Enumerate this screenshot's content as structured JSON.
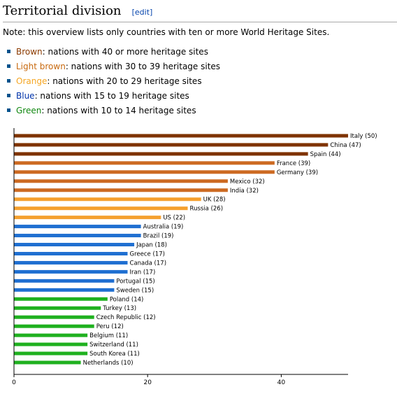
{
  "section": {
    "title": "Territorial division",
    "edit_label": "edit",
    "edit_open": "[",
    "edit_close": "]"
  },
  "note": "Note: this overview lists only countries with ten or more World Heritage Sites.",
  "legend": [
    {
      "term": "Brown",
      "rest": ": nations with 40 or more heritage sites",
      "color": "#8b3a00"
    },
    {
      "term": "Light brown",
      "rest": ": nations with 30 to 39 heritage sites",
      "color": "#c8690e"
    },
    {
      "term": "Orange",
      "rest": ": nations with 20 to 29 heritage sites",
      "color": "#f5a623"
    },
    {
      "term": "Blue",
      "rest": ": nations with 15 to 19 heritage sites",
      "color": "#0033aa"
    },
    {
      "term": "Green",
      "rest": ": nations with 10 to 14 heritage sites",
      "color": "#118811"
    }
  ],
  "chart_data": {
    "type": "bar",
    "orientation": "horizontal",
    "xlim": [
      0,
      50
    ],
    "xticks": [
      "0",
      "20",
      "40"
    ],
    "grid": false,
    "colors": {
      "brown": "#7f3300",
      "light_brown": "#cc6a22",
      "orange": "#f5a02e",
      "blue": "#1f6fd1",
      "green": "#1fb11f"
    },
    "bars": [
      {
        "label": "Italy (50)",
        "value": 50,
        "group": "brown"
      },
      {
        "label": "China (47)",
        "value": 47,
        "group": "brown"
      },
      {
        "label": "Spain (44)",
        "value": 44,
        "group": "brown"
      },
      {
        "label": "France (39)",
        "value": 39,
        "group": "light_brown"
      },
      {
        "label": "Germany (39)",
        "value": 39,
        "group": "light_brown"
      },
      {
        "label": "Mexico (32)",
        "value": 32,
        "group": "light_brown"
      },
      {
        "label": "India (32)",
        "value": 32,
        "group": "light_brown"
      },
      {
        "label": "UK (28)",
        "value": 28,
        "group": "orange"
      },
      {
        "label": "Russia (26)",
        "value": 26,
        "group": "orange"
      },
      {
        "label": "US (22)",
        "value": 22,
        "group": "orange"
      },
      {
        "label": "Australia (19)",
        "value": 19,
        "group": "blue"
      },
      {
        "label": "Brazil (19)",
        "value": 19,
        "group": "blue"
      },
      {
        "label": "Japan (18)",
        "value": 18,
        "group": "blue"
      },
      {
        "label": "Greece (17)",
        "value": 17,
        "group": "blue"
      },
      {
        "label": "Canada (17)",
        "value": 17,
        "group": "blue"
      },
      {
        "label": "Iran (17)",
        "value": 17,
        "group": "blue"
      },
      {
        "label": "Portugal (15)",
        "value": 15,
        "group": "blue"
      },
      {
        "label": "Sweden (15)",
        "value": 15,
        "group": "blue"
      },
      {
        "label": "Poland (14)",
        "value": 14,
        "group": "green"
      },
      {
        "label": "Turkey (13)",
        "value": 13,
        "group": "green"
      },
      {
        "label": "Czech Republic (12)",
        "value": 12,
        "group": "green"
      },
      {
        "label": "Peru (12)",
        "value": 12,
        "group": "green"
      },
      {
        "label": "Belgium (11)",
        "value": 11,
        "group": "green"
      },
      {
        "label": "Switzerland (11)",
        "value": 11,
        "group": "green"
      },
      {
        "label": "South Korea (11)",
        "value": 11,
        "group": "green"
      },
      {
        "label": "Netherlands (10)",
        "value": 10,
        "group": "green"
      }
    ]
  }
}
